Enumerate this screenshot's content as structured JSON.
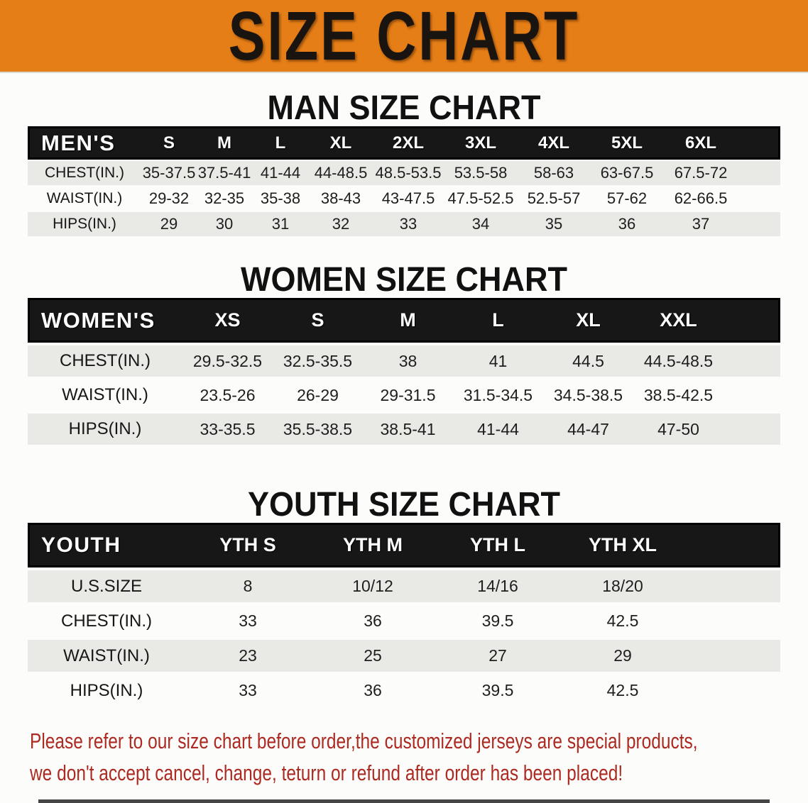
{
  "banner": {
    "title": "SIZE CHART",
    "bg_color": "#E67E17"
  },
  "sections": [
    {
      "id": "men",
      "title": "MAN SIZE CHART",
      "header_label": "MEN'S",
      "columns": [
        "S",
        "M",
        "L",
        "XL",
        "2XL",
        "3XL",
        "4XL",
        "5XL",
        "6XL"
      ],
      "rows": [
        {
          "label": "CHEST(IN.)",
          "values": [
            "35-37.5",
            "37.5-41",
            "41-44",
            "44-48.5",
            "48.5-53.5",
            "53.5-58",
            "58-63",
            "63-67.5",
            "67.5-72"
          ]
        },
        {
          "label": "WAIST(IN.)",
          "values": [
            "29-32",
            "32-35",
            "35-38",
            "38-43",
            "43-47.5",
            "47.5-52.5",
            "52.5-57",
            "57-62",
            "62-66.5"
          ]
        },
        {
          "label": "HIPS(IN.)",
          "values": [
            "29",
            "30",
            "31",
            "32",
            "33",
            "34",
            "35",
            "36",
            "37"
          ]
        }
      ]
    },
    {
      "id": "women",
      "title": "WOMEN SIZE CHART",
      "header_label": "WOMEN'S",
      "columns": [
        "XS",
        "S",
        "M",
        "L",
        "XL",
        "XXL"
      ],
      "rows": [
        {
          "label": "CHEST(IN.)",
          "values": [
            "29.5-32.5",
            "32.5-35.5",
            "38",
            "41",
            "44.5",
            "44.5-48.5"
          ]
        },
        {
          "label": "WAIST(IN.)",
          "values": [
            "23.5-26",
            "26-29",
            "29-31.5",
            "31.5-34.5",
            "34.5-38.5",
            "38.5-42.5"
          ]
        },
        {
          "label": "HIPS(IN.)",
          "values": [
            "33-35.5",
            "35.5-38.5",
            "38.5-41",
            "41-44",
            "44-47",
            "47-50"
          ]
        }
      ]
    },
    {
      "id": "youth",
      "title": "YOUTH SIZE CHART",
      "header_label": "YOUTH",
      "columns": [
        "YTH S",
        "YTH M",
        "YTH L",
        "YTH XL"
      ],
      "rows": [
        {
          "label": "U.S.SIZE",
          "values": [
            "8",
            "10/12",
            "14/16",
            "18/20"
          ]
        },
        {
          "label": "CHEST(IN.)",
          "values": [
            "33",
            "36",
            "39.5",
            "42.5"
          ]
        },
        {
          "label": "WAIST(IN.)",
          "values": [
            "23",
            "25",
            "27",
            "29"
          ]
        },
        {
          "label": "HIPS(IN.)",
          "values": [
            "33",
            "36",
            "39.5",
            "42.5"
          ]
        }
      ]
    }
  ],
  "footer": {
    "line1": "Please refer to our size chart before order,the customized jerseys are special products,",
    "line2": "we don't accept cancel, change, teturn or refund after order has been placed!",
    "text_color": "#AC2A21"
  },
  "colors": {
    "banner_bg": "#E67E17",
    "header_bar": "#171717",
    "band_gray": "#E9E9E6",
    "footer_red": "#AC2A21"
  }
}
